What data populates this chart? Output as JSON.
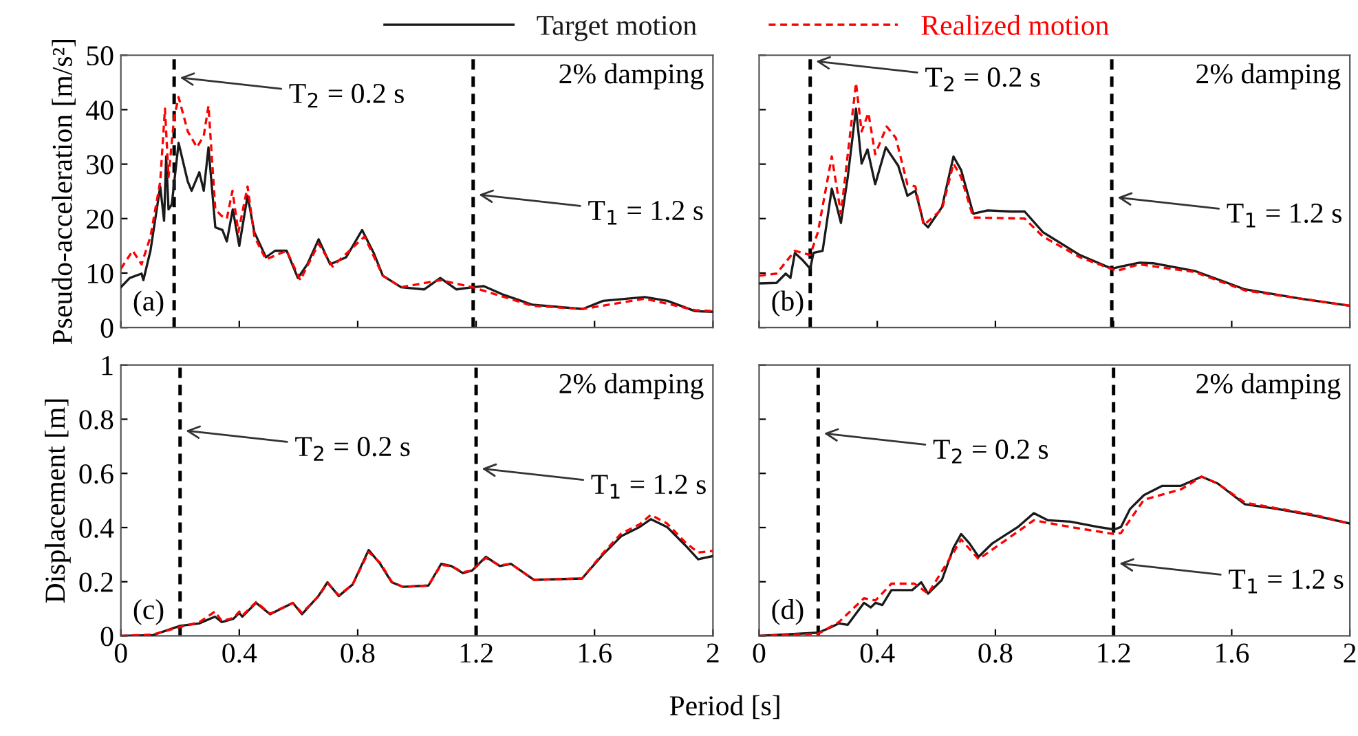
{
  "chart_data": [
    {
      "type": "line",
      "ylabel": "Pseudo-acceleration [m/s²]",
      "xlim": [
        0,
        2
      ],
      "ylim": [
        0,
        50
      ],
      "xticks": [
        0,
        0.4,
        0.8,
        1.2,
        1.6,
        2
      ],
      "yticks": [
        0,
        10,
        20,
        30,
        40,
        50
      ],
      "tick_labels": "y",
      "grid": false,
      "legend": "top",
      "marker": "none",
      "series": [
        {
          "name": "Target motion",
          "color": "#1a1a1a",
          "line_style": "solid",
          "x": [
            0,
            0.03,
            0.07,
            0.076,
            0.1,
            0.133,
            0.146,
            0.153,
            0.161,
            0.172,
            0.195,
            0.226,
            0.239,
            0.265,
            0.28,
            0.296,
            0.319,
            0.343,
            0.358,
            0.378,
            0.4,
            0.428,
            0.451,
            0.49,
            0.521,
            0.56,
            0.598,
            0.63,
            0.668,
            0.707,
            0.761,
            0.815,
            0.854,
            0.885,
            0.947,
            1.025,
            1.079,
            1.133,
            1.188,
            1.226,
            1.288,
            1.389,
            1.56,
            1.629,
            1.77,
            1.846,
            1.94,
            2.0
          ],
          "values": [
            7.4,
            9.1,
            9.9,
            8.7,
            14.1,
            25.9,
            19.6,
            31.4,
            21.7,
            22.6,
            33.9,
            26.8,
            25.1,
            28.5,
            25.1,
            33.1,
            18.4,
            17.9,
            15.8,
            21.7,
            15.0,
            24.2,
            17.5,
            12.9,
            14.1,
            14.1,
            9.1,
            11.6,
            16.2,
            11.6,
            12.9,
            17.9,
            13.7,
            9.5,
            7.4,
            7.0,
            9.1,
            7.0,
            7.4,
            7.6,
            6.1,
            4.2,
            3.4,
            4.9,
            5.6,
            4.9,
            3.0,
            2.9
          ]
        },
        {
          "name": "Realized motion",
          "color": "#ff0000",
          "line_style": "dashed",
          "x": [
            0,
            0.04,
            0.07,
            0.1,
            0.133,
            0.149,
            0.161,
            0.18,
            0.195,
            0.226,
            0.257,
            0.28,
            0.296,
            0.319,
            0.34,
            0.358,
            0.377,
            0.397,
            0.428,
            0.451,
            0.49,
            0.56,
            0.606,
            0.668,
            0.715,
            0.823,
            0.885,
            0.947,
            1.079,
            1.188,
            1.389,
            1.56,
            1.77,
            1.94,
            2.0
          ],
          "values": [
            10.8,
            14.1,
            11.6,
            16.7,
            26.8,
            40.2,
            27.6,
            38.6,
            42.3,
            36.0,
            33.1,
            35.2,
            40.7,
            21.7,
            20.5,
            20.0,
            25.1,
            17.5,
            25.9,
            16.7,
            12.5,
            14.1,
            8.7,
            15.4,
            11.2,
            16.7,
            9.5,
            7.4,
            8.7,
            7.4,
            4.0,
            3.4,
            5.3,
            3.2,
            3.0
          ]
        }
      ],
      "ref_lines": [
        {
          "axis": "x",
          "value": 0.18,
          "color": "#000000",
          "line_style": "dashed",
          "label": "T$_{2}$ = 0.2 s"
        },
        {
          "axis": "x",
          "value": 1.19,
          "color": "#000000",
          "line_style": "dashed",
          "label": "T$_{1}$ = 1.2 s"
        }
      ],
      "annotations": [
        "2% damping",
        "(a)"
      ]
    },
    {
      "type": "line",
      "xlim": [
        0,
        2
      ],
      "ylim": [
        0,
        50
      ],
      "xticks": [
        0,
        0.4,
        0.8,
        1.2,
        1.6,
        2
      ],
      "yticks": [
        0,
        10,
        20,
        30,
        40,
        50
      ],
      "tick_labels": false,
      "grid": false,
      "marker": "none",
      "series": [
        {
          "color": "#1a1a1a",
          "line_style": "solid",
          "x": [
            0,
            0.059,
            0.09,
            0.106,
            0.121,
            0.145,
            0.173,
            0.184,
            0.215,
            0.23,
            0.246,
            0.261,
            0.277,
            0.3,
            0.328,
            0.347,
            0.367,
            0.393,
            0.429,
            0.471,
            0.502,
            0.529,
            0.557,
            0.572,
            0.619,
            0.658,
            0.684,
            0.725,
            0.774,
            0.852,
            0.899,
            0.961,
            1.086,
            1.194,
            1.226,
            1.288,
            1.334,
            1.474,
            1.645,
            1.832,
            2.0
          ],
          "values": [
            8.1,
            8.2,
            9.9,
            9.1,
            13.7,
            12.5,
            10.8,
            13.7,
            14.1,
            19.6,
            25.5,
            22.6,
            19.2,
            27.6,
            40.2,
            30.1,
            32.7,
            26.3,
            33.1,
            29.7,
            24.2,
            25.1,
            19.2,
            18.4,
            22.1,
            31.4,
            28.9,
            20.9,
            21.5,
            21.3,
            21.3,
            17.5,
            13.3,
            10.8,
            11.2,
            11.9,
            11.8,
            10.4,
            7.0,
            5.3,
            4.0
          ]
        },
        {
          "color": "#ff0000",
          "line_style": "dashed",
          "x": [
            0,
            0.059,
            0.121,
            0.173,
            0.199,
            0.246,
            0.277,
            0.328,
            0.347,
            0.37,
            0.393,
            0.432,
            0.463,
            0.502,
            0.529,
            0.557,
            0.619,
            0.658,
            0.684,
            0.725,
            0.899,
            0.961,
            1.086,
            1.21,
            1.288,
            1.474,
            1.645,
            2.0
          ],
          "values": [
            9.5,
            9.9,
            14.1,
            13.3,
            17.5,
            31.4,
            20.9,
            44.9,
            36.0,
            39.4,
            31.8,
            36.9,
            34.8,
            26.3,
            25.9,
            18.8,
            21.7,
            30.1,
            27.6,
            20.2,
            20.0,
            16.7,
            12.9,
            10.4,
            11.6,
            10.2,
            6.8,
            4.0
          ]
        }
      ],
      "ref_lines": [
        {
          "axis": "x",
          "value": 0.173,
          "color": "#000000",
          "line_style": "dashed",
          "label": "T$_{2}$ = 0.2 s"
        },
        {
          "axis": "x",
          "value": 1.194,
          "color": "#000000",
          "line_style": "dashed",
          "label": "T$_{1}$ = 1.2 s"
        }
      ],
      "annotations": [
        "2% damping",
        "(b)"
      ]
    },
    {
      "type": "line",
      "xlabel": "Period [s]",
      "ylabel": "Displacement [m]",
      "xlim": [
        0,
        2
      ],
      "ylim": [
        0,
        1
      ],
      "xticks": [
        0,
        0.4,
        0.8,
        1.2,
        1.6,
        2
      ],
      "yticks": [
        0,
        0.2,
        0.4,
        0.6,
        0.8,
        1
      ],
      "grid": false,
      "marker": "none",
      "series": [
        {
          "color": "#1a1a1a",
          "line_style": "solid",
          "x": [
            0,
            0.108,
            0.2,
            0.264,
            0.318,
            0.341,
            0.38,
            0.4,
            0.41,
            0.457,
            0.504,
            0.581,
            0.612,
            0.667,
            0.698,
            0.736,
            0.783,
            0.837,
            0.876,
            0.915,
            0.953,
            1.039,
            1.082,
            1.116,
            1.155,
            1.186,
            1.233,
            1.28,
            1.318,
            1.395,
            1.558,
            1.628,
            1.69,
            1.752,
            1.79,
            1.845,
            1.907,
            1.95,
            2.0
          ],
          "values": [
            0,
            0.003,
            0.037,
            0.046,
            0.071,
            0.051,
            0.063,
            0.085,
            0.071,
            0.122,
            0.08,
            0.122,
            0.08,
            0.147,
            0.198,
            0.147,
            0.19,
            0.317,
            0.266,
            0.198,
            0.181,
            0.186,
            0.266,
            0.258,
            0.232,
            0.241,
            0.292,
            0.258,
            0.266,
            0.207,
            0.212,
            0.3,
            0.368,
            0.402,
            0.431,
            0.402,
            0.334,
            0.283,
            0.295
          ]
        },
        {
          "color": "#ff0000",
          "line_style": "dashed",
          "x": [
            0,
            0.108,
            0.186,
            0.264,
            0.318,
            0.341,
            0.38,
            0.4,
            0.41,
            0.457,
            0.504,
            0.581,
            0.612,
            0.667,
            0.698,
            0.736,
            0.783,
            0.837,
            0.876,
            0.915,
            0.953,
            1.039,
            1.082,
            1.116,
            1.155,
            1.186,
            1.233,
            1.28,
            1.318,
            1.395,
            1.558,
            1.628,
            1.69,
            1.752,
            1.79,
            1.845,
            1.907,
            1.95,
            2.0
          ],
          "values": [
            0,
            0.005,
            0.029,
            0.05,
            0.09,
            0.055,
            0.066,
            0.09,
            0.075,
            0.125,
            0.082,
            0.122,
            0.085,
            0.145,
            0.195,
            0.15,
            0.19,
            0.31,
            0.27,
            0.2,
            0.181,
            0.186,
            0.262,
            0.258,
            0.235,
            0.241,
            0.288,
            0.26,
            0.266,
            0.207,
            0.212,
            0.305,
            0.378,
            0.412,
            0.447,
            0.415,
            0.345,
            0.308,
            0.314
          ]
        }
      ],
      "ref_lines": [
        {
          "axis": "x",
          "value": 0.2,
          "color": "#000000",
          "line_style": "dashed",
          "label": "T$_{2}$ = 0.2 s"
        },
        {
          "axis": "x",
          "value": 1.2,
          "color": "#000000",
          "line_style": "dashed",
          "label": "T$_{1}$ = 1.2 s"
        }
      ],
      "annotations": [
        "2% damping",
        "(c)"
      ]
    },
    {
      "type": "line",
      "xlim": [
        0,
        2
      ],
      "ylim": [
        0,
        1
      ],
      "xticks": [
        0,
        0.4,
        0.8,
        1.2,
        1.6,
        2
      ],
      "yticks": [
        0,
        0.2,
        0.4,
        0.6,
        0.8,
        1
      ],
      "tick_labels": "x",
      "grid": false,
      "marker": "none",
      "series": [
        {
          "color": "#1a1a1a",
          "line_style": "solid",
          "x": [
            0,
            0.2,
            0.238,
            0.27,
            0.3,
            0.355,
            0.378,
            0.394,
            0.417,
            0.448,
            0.518,
            0.549,
            0.572,
            0.619,
            0.658,
            0.684,
            0.712,
            0.743,
            0.79,
            0.876,
            0.93,
            0.977,
            1.054,
            1.148,
            1.202,
            1.225,
            1.256,
            1.303,
            1.365,
            1.428,
            1.498,
            1.552,
            1.645,
            1.754,
            1.879,
            2.0
          ],
          "values": [
            0,
            0.012,
            0.029,
            0.046,
            0.041,
            0.122,
            0.105,
            0.122,
            0.114,
            0.169,
            0.169,
            0.198,
            0.156,
            0.207,
            0.325,
            0.376,
            0.342,
            0.292,
            0.342,
            0.402,
            0.453,
            0.427,
            0.422,
            0.402,
            0.393,
            0.402,
            0.469,
            0.52,
            0.554,
            0.554,
            0.588,
            0.563,
            0.486,
            0.469,
            0.444,
            0.415
          ]
        },
        {
          "color": "#ff0000",
          "line_style": "dashed",
          "x": [
            0,
            0.2,
            0.27,
            0.355,
            0.394,
            0.448,
            0.526,
            0.572,
            0.658,
            0.684,
            0.743,
            0.876,
            0.93,
            1.054,
            1.202,
            1.225,
            1.303,
            1.428,
            1.498,
            1.552,
            1.645,
            1.879,
            2.0
          ],
          "values": [
            0,
            0.008,
            0.051,
            0.139,
            0.131,
            0.193,
            0.193,
            0.156,
            0.308,
            0.356,
            0.283,
            0.385,
            0.427,
            0.402,
            0.376,
            0.38,
            0.503,
            0.541,
            0.588,
            0.563,
            0.492,
            0.447,
            0.415
          ]
        }
      ],
      "ref_lines": [
        {
          "axis": "x",
          "value": 0.2,
          "color": "#000000",
          "line_style": "dashed",
          "label": "T$_{2}$ = 0.2 s"
        },
        {
          "axis": "x",
          "value": 1.2,
          "color": "#000000",
          "line_style": "dashed",
          "label": "T$_{1}$ = 1.2 s"
        }
      ],
      "annotations": [
        "2% damping",
        "(d)"
      ]
    }
  ]
}
